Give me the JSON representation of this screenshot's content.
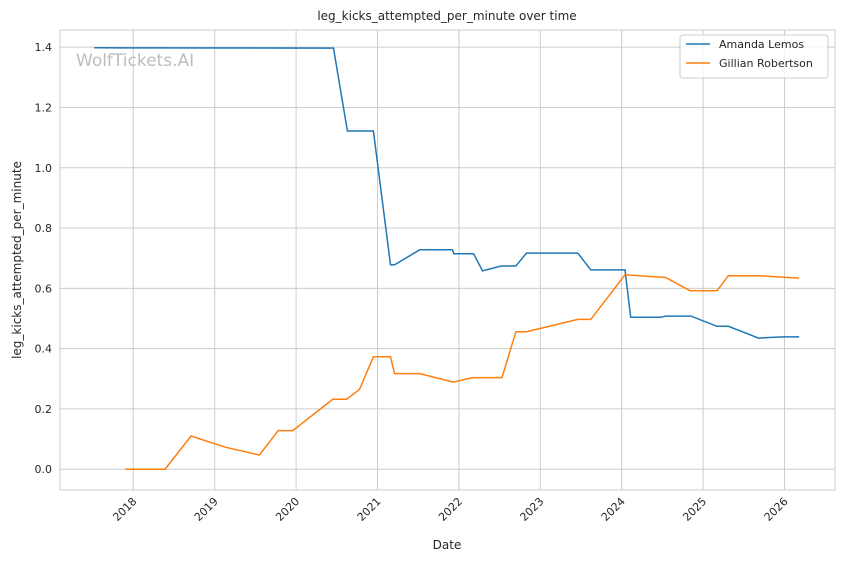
{
  "chart_data": {
    "type": "line",
    "title": "leg_kicks_attempted_per_minute over time",
    "xlabel": "Date",
    "ylabel": "leg_kicks_attempted_per_minute",
    "watermark": "WolfTickets.AI",
    "xlim": [
      2017.1,
      2026.62
    ],
    "ylim": [
      -0.069,
      1.457
    ],
    "xticks": [
      2018,
      2019,
      2020,
      2021,
      2022,
      2023,
      2024,
      2025,
      2026
    ],
    "xtick_labels": [
      "2018",
      "2019",
      "2020",
      "2021",
      "2022",
      "2023",
      "2024",
      "2025",
      "2026"
    ],
    "yticks": [
      0.0,
      0.2,
      0.4,
      0.6,
      0.8,
      1.0,
      1.2,
      1.4
    ],
    "ytick_labels": [
      "0.0",
      "0.2",
      "0.4",
      "0.6",
      "0.8",
      "1.0",
      "1.2",
      "1.4"
    ],
    "grid": true,
    "legend_position": "top-right",
    "series": [
      {
        "name": "Amanda Lemos",
        "color": "#1f77b4",
        "x": [
          2017.52,
          2020.46,
          2020.63,
          2020.95,
          2021.16,
          2021.21,
          2021.52,
          2021.92,
          2021.94,
          2022.18,
          2022.29,
          2022.52,
          2022.7,
          2022.83,
          2023.46,
          2023.62,
          2024.04,
          2024.11,
          2024.48,
          2024.54,
          2024.85,
          2025.17,
          2025.31,
          2025.68,
          2025.97,
          2026.18
        ],
        "y": [
          1.398,
          1.397,
          1.122,
          1.122,
          0.678,
          0.678,
          0.728,
          0.728,
          0.715,
          0.715,
          0.658,
          0.674,
          0.674,
          0.717,
          0.717,
          0.661,
          0.661,
          0.504,
          0.504,
          0.508,
          0.508,
          0.474,
          0.474,
          0.435,
          0.439,
          0.439
        ]
      },
      {
        "name": "Gillian Robertson",
        "color": "#ff7f0e",
        "x": [
          2017.9,
          2018.39,
          2018.71,
          2019.13,
          2019.55,
          2019.78,
          2019.96,
          2020.45,
          2020.62,
          2020.78,
          2020.95,
          2021.16,
          2021.21,
          2021.52,
          2021.93,
          2022.17,
          2022.53,
          2022.7,
          2022.83,
          2023.46,
          2023.62,
          2024.04,
          2024.54,
          2024.84,
          2025.17,
          2025.31,
          2025.68,
          2026.18
        ],
        "y": [
          0.0,
          0.0,
          0.11,
          0.073,
          0.047,
          0.128,
          0.128,
          0.232,
          0.232,
          0.265,
          0.373,
          0.373,
          0.317,
          0.317,
          0.289,
          0.304,
          0.304,
          0.456,
          0.456,
          0.497,
          0.497,
          0.645,
          0.636,
          0.592,
          0.592,
          0.642,
          0.642,
          0.634
        ]
      }
    ]
  }
}
